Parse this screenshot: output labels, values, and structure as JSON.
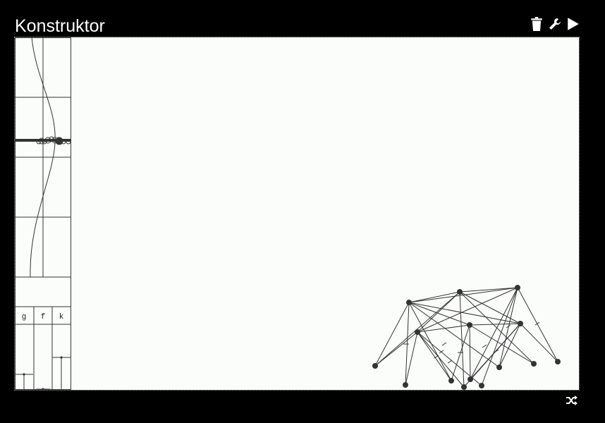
{
  "app": {
    "title": "Konstruktor"
  },
  "toolbar": {
    "delete_icon": "trash-icon",
    "settings_icon": "wrench-icon",
    "run_icon": "play-icon"
  },
  "left_panel": {
    "columns": [
      "g",
      "f",
      "k"
    ]
  },
  "footer": {
    "shuffle_icon": "shuffle-icon"
  },
  "colors": {
    "background": "#000000",
    "canvas": "#fbfdfb",
    "stroke": "#333333",
    "title": "#ffffff"
  }
}
